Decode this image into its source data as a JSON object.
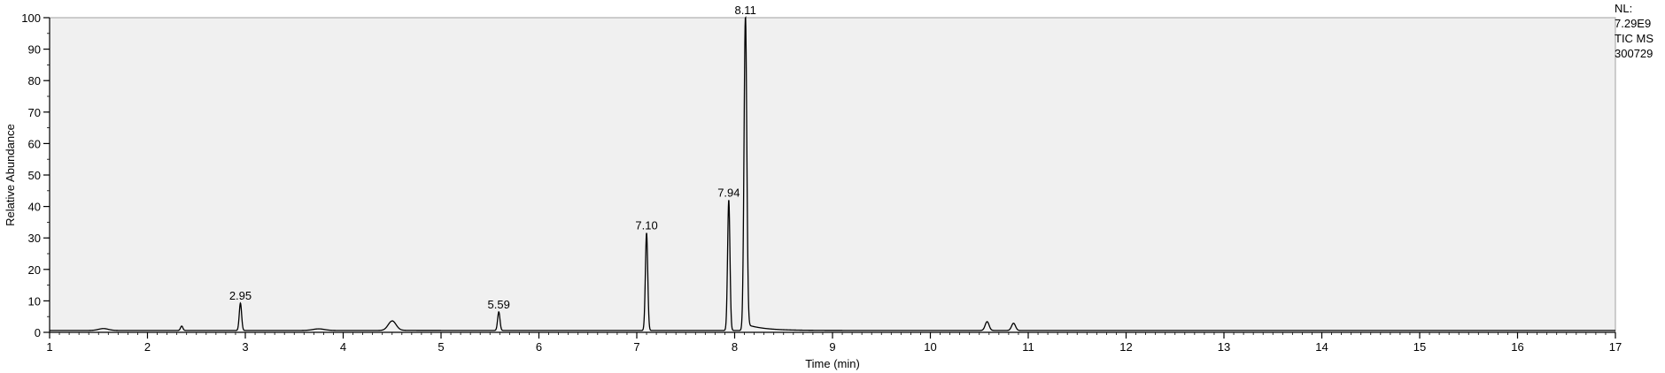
{
  "side_info": {
    "line1": "NL:",
    "line2": "7.29E9",
    "line3": "TIC  MS",
    "line4": "300729"
  },
  "chart_data": {
    "type": "line",
    "title": "",
    "xlabel": "Time (min)",
    "ylabel": "Relative Abundance",
    "xlim": [
      1,
      17
    ],
    "ylim": [
      0,
      100
    ],
    "xticks": [
      1,
      2,
      3,
      4,
      5,
      6,
      7,
      8,
      9,
      10,
      11,
      12,
      13,
      14,
      15,
      16,
      17
    ],
    "yticks": [
      0,
      10,
      20,
      30,
      40,
      50,
      60,
      70,
      80,
      90,
      100
    ],
    "grid": false,
    "plot_background": "#f0f0f0",
    "line_color": "#000000",
    "baseline": 0.6,
    "peaks": [
      {
        "rt": 1.55,
        "height": 0.6,
        "width": 0.05
      },
      {
        "rt": 2.35,
        "height": 1.4,
        "width": 0.012
      },
      {
        "rt": 2.95,
        "height": 8.7,
        "width": 0.012,
        "label": "2.95"
      },
      {
        "rt": 3.75,
        "height": 0.5,
        "width": 0.06
      },
      {
        "rt": 4.5,
        "height": 3.0,
        "width": 0.04,
        "tail": 0.25
      },
      {
        "rt": 5.59,
        "height": 5.9,
        "width": 0.012,
        "label": "5.59"
      },
      {
        "rt": 7.1,
        "height": 31.0,
        "width": 0.012,
        "label": "7.10"
      },
      {
        "rt": 7.94,
        "height": 41.5,
        "width": 0.012,
        "label": "7.94"
      },
      {
        "rt": 8.11,
        "height": 99.4,
        "width": 0.014,
        "label": "8.11",
        "tail": 0.18
      },
      {
        "rt": 10.58,
        "height": 2.8,
        "width": 0.02
      },
      {
        "rt": 10.85,
        "height": 2.3,
        "width": 0.02
      }
    ]
  }
}
